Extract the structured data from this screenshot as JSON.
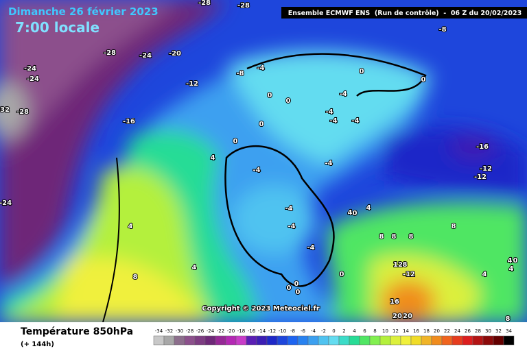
{
  "header": {
    "date": "Dimanche 26 février 2023",
    "time": "7:00 locale",
    "model": "Ensemble ECMWF ENS  (Run de contrôle)  -  06 Z du 20/02/2023",
    "copyright": "Copyright © 2023 Meteociel.fr"
  },
  "footer": {
    "variable": "Température 850hPa",
    "lead": "(+ 144h)"
  },
  "legend": {
    "values": [
      -34,
      -32,
      -30,
      -28,
      -26,
      -24,
      -22,
      -20,
      -18,
      -16,
      -14,
      -12,
      -10,
      -8,
      -6,
      -4,
      -2,
      0,
      2,
      4,
      6,
      8,
      10,
      12,
      14,
      16,
      18,
      20,
      22,
      24,
      26,
      28,
      30,
      32,
      34
    ],
    "colors": [
      "#c8c8c8",
      "#a8a8a8",
      "#8c6e8c",
      "#8c508c",
      "#7d3c82",
      "#6e2878",
      "#962896",
      "#b428b4",
      "#c83cc8",
      "#5a1eb4",
      "#3c1eb4",
      "#1e28c8",
      "#1e46dc",
      "#1e64f0",
      "#2882f0",
      "#3ca0f0",
      "#50c3f0",
      "#64dcf0",
      "#3cdcc8",
      "#28dc96",
      "#50e664",
      "#82f050",
      "#b4f03c",
      "#dcf03c",
      "#f0f03c",
      "#f0dc28",
      "#f0b428",
      "#f08c1e",
      "#f0641e",
      "#e63c1e",
      "#dc1e1e",
      "#b41414",
      "#8c0a0a",
      "#640000",
      "#000000"
    ]
  },
  "contour_labels": [
    "-28",
    "-28",
    "-28",
    "-24",
    "-20",
    "-24",
    "-24",
    "-8",
    "-4",
    "-12",
    "0",
    "0",
    "-8",
    "-32",
    "-28",
    "-16",
    "0",
    "0",
    "-4",
    "-4",
    "-4",
    "-4",
    "0",
    "0",
    "4",
    "-4",
    "-4",
    "-16",
    "-12",
    "-12",
    "-24",
    "4",
    "4",
    "0",
    "4",
    "-4",
    "-4",
    "8",
    "8",
    "8",
    "8",
    "-4",
    "4",
    "8",
    "12",
    "8",
    "-12",
    "4",
    "4",
    "0",
    "4",
    "0",
    "0",
    "0",
    "0",
    "16",
    "20",
    "20",
    "8"
  ]
}
